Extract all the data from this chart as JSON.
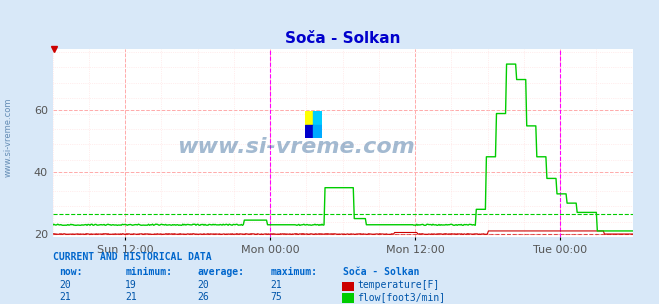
{
  "title": "Soča - Solkan",
  "title_color": "#0000cc",
  "bg_color": "#d8e8f8",
  "plot_bg_color": "#ffffff",
  "grid_color_major": "#ffaaaa",
  "grid_color_minor": "#ffdddd",
  "ymin": 19,
  "ymax": 80,
  "yticks": [
    20,
    40,
    60
  ],
  "xlabel_ticks": [
    "Sun 12:00",
    "Mon 00:00",
    "Mon 12:00",
    "Tue 00:00"
  ],
  "xlabel_tick_positions": [
    0.125,
    0.375,
    0.625,
    0.875
  ],
  "watermark": "www.si-vreme.com",
  "watermark_color": "#336699",
  "watermark_alpha": 0.45,
  "temp_color": "#cc0000",
  "flow_color": "#00cc00",
  "magenta_line_color": "#ff00ff",
  "sidebar_text_color": "#336699",
  "table_header_color": "#0066cc",
  "table_data_color": "#0055aa",
  "temp_now": 20,
  "temp_min": 19,
  "temp_avg": 20,
  "temp_max": 21,
  "flow_now": 21,
  "flow_min": 21,
  "flow_avg": 26,
  "flow_max": 75,
  "temp_label": "temperature[F]",
  "flow_label": "flow[foot3/min]",
  "n_points": 576,
  "temp_baseline": 20.0,
  "flow_baseline": 23.0,
  "flow_avg_line": 26.5
}
